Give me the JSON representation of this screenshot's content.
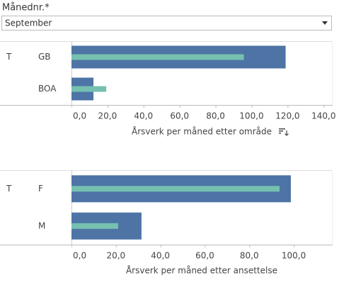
{
  "filter": {
    "label": "Månednr.*",
    "value": "September"
  },
  "chart_data": [
    {
      "type": "bar",
      "orientation": "horizontal",
      "row_header": "T",
      "categories": [
        "GB",
        "BOA"
      ],
      "series": [
        {
          "color": "#4e74a6",
          "values": [
            118.9,
            12.2
          ]
        },
        {
          "color": "#76c0b0",
          "values": [
            95.7,
            19.3
          ]
        }
      ],
      "xlim": [
        0,
        145
      ],
      "xticks": [
        {
          "value": 0,
          "label": "0,0"
        },
        {
          "value": 20,
          "label": "20,0"
        },
        {
          "value": 40,
          "label": "40,0"
        },
        {
          "value": 60,
          "label": "60,0"
        },
        {
          "value": 80,
          "label": "80,0"
        },
        {
          "value": 100,
          "label": "100,0"
        },
        {
          "value": 120,
          "label": "120,0"
        },
        {
          "value": 140,
          "label": "140,0"
        }
      ],
      "x_label": "Årsverk per måned etter område"
    },
    {
      "type": "bar",
      "orientation": "horizontal",
      "row_header": "T",
      "categories": [
        "F",
        "M"
      ],
      "series": [
        {
          "color": "#4e74a6",
          "values": [
            98.7,
            31.5
          ]
        },
        {
          "color": "#76c0b0",
          "values": [
            93.6,
            21
          ]
        }
      ],
      "xlim": [
        0,
        117.5
      ],
      "xticks": [
        {
          "value": 0,
          "label": "0,0"
        },
        {
          "value": 20,
          "label": "20,0"
        },
        {
          "value": 40,
          "label": "40,0"
        },
        {
          "value": 60,
          "label": "60,0"
        },
        {
          "value": 80,
          "label": "80,0"
        },
        {
          "value": 100,
          "label": "100,0"
        }
      ],
      "x_label": "Årsverk per måned etter ansettelse"
    }
  ]
}
